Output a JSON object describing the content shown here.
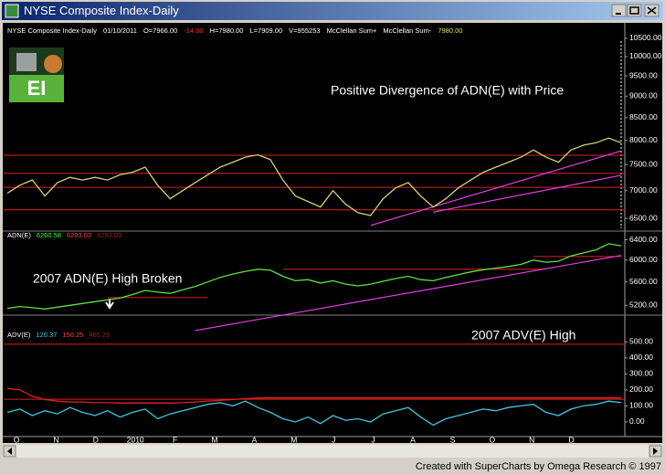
{
  "window": {
    "title": "NYSE Composite Index-Daily"
  },
  "footer": "Created with SuperCharts by Omega Research © 1997",
  "logo": "EI",
  "header": [
    {
      "text": "NYSE Composite Index-Daily",
      "color": "#ffffff"
    },
    {
      "text": "01/10/2011",
      "color": "#ffffff"
    },
    {
      "text": "O=7966.00",
      "color": "#ffffff"
    },
    {
      "text": "-14.00",
      "color": "#ff3030"
    },
    {
      "text": "H=7980.00",
      "color": "#ffffff"
    },
    {
      "text": "L=7909.00",
      "color": "#ffffff"
    },
    {
      "text": "V=955253",
      "color": "#ffffff"
    },
    {
      "text": "McClellan Sum+",
      "color": "#ffffff"
    },
    {
      "text": "McClellan Sum-",
      "color": "#ffffff"
    },
    {
      "text": "7980.00",
      "color": "#e0e060"
    }
  ],
  "x_labels": [
    "O",
    "N",
    "D",
    "2010",
    "F",
    "M",
    "A",
    "M",
    "J",
    "J",
    "A",
    "S",
    "O",
    "N",
    "D"
  ],
  "chart_data": [
    {
      "type": "line",
      "log_scale": true,
      "annotation": "Positive Divergence of ADN(E) with Price",
      "ylim": [
        6300,
        10600
      ],
      "yticks": [
        {
          "value": 10500,
          "label": "10500.00"
        },
        {
          "value": 10000,
          "label": "10000.00"
        },
        {
          "value": 9500,
          "label": "9500.00"
        },
        {
          "value": 9000,
          "label": "9000.00"
        },
        {
          "value": 8500,
          "label": "8500.00"
        },
        {
          "value": 8000,
          "label": "8000.00"
        },
        {
          "value": 7500,
          "label": "7500.00"
        },
        {
          "value": 7000,
          "label": "7000.00"
        },
        {
          "value": 6500,
          "label": "6500.00"
        }
      ],
      "series": [
        {
          "color": "#d8d070",
          "values": [
            6950,
            7100,
            7200,
            6900,
            7150,
            7250,
            7200,
            7250,
            7200,
            7300,
            7350,
            7450,
            7100,
            6850,
            7000,
            7150,
            7300,
            7450,
            7550,
            7650,
            7700,
            7600,
            7200,
            6900,
            6800,
            6700,
            7000,
            6750,
            6600,
            6550,
            6850,
            7050,
            7150,
            6900,
            6700,
            6850,
            7050,
            7200,
            7350,
            7450,
            7550,
            7650,
            7800,
            7650,
            7550,
            7800,
            7900,
            7950,
            8050,
            7950
          ]
        }
      ],
      "reference_lines": [
        {
          "value": 7690,
          "color": "#e02020"
        },
        {
          "value": 7330,
          "color": "#e02020"
        },
        {
          "value": 7060,
          "color": "#e02020"
        },
        {
          "value": 6650,
          "color": "#e02020"
        }
      ],
      "trendlines": [
        {
          "x": [
            29,
            49
          ],
          "values": [
            6380,
            7780
          ],
          "color": "#e040e0"
        },
        {
          "x": [
            34,
            49
          ],
          "values": [
            6610,
            7290
          ],
          "color": "#e040e0"
        }
      ]
    },
    {
      "type": "line",
      "log_scale": true,
      "annotation": "2007 ADN(E) High Broken",
      "legend": [
        {
          "text": "ADN(E)",
          "color": "#ffffff"
        },
        {
          "text": "6260.58",
          "color": "#40ff40"
        },
        {
          "text": "6293.03",
          "color": "#ff4040"
        },
        {
          "text": "6293.03",
          "color": "#a02020"
        }
      ],
      "ylim": [
        5070,
        6560
      ],
      "yticks": [
        {
          "value": 6400,
          "label": "6400.00"
        },
        {
          "value": 6000,
          "label": "6000.00"
        },
        {
          "value": 5600,
          "label": "5600.00"
        },
        {
          "value": 5200,
          "label": "5200.00"
        }
      ],
      "series": [
        {
          "color": "#60e040",
          "values": [
            5150,
            5180,
            5160,
            5140,
            5170,
            5200,
            5230,
            5260,
            5290,
            5320,
            5380,
            5450,
            5420,
            5400,
            5460,
            5520,
            5600,
            5680,
            5740,
            5790,
            5830,
            5810,
            5700,
            5620,
            5640,
            5580,
            5620,
            5560,
            5530,
            5560,
            5610,
            5660,
            5700,
            5640,
            5620,
            5680,
            5730,
            5780,
            5820,
            5850,
            5880,
            5920,
            6000,
            5960,
            5980,
            6080,
            6140,
            6200,
            6320,
            6280
          ]
        }
      ],
      "reference_lines": [
        {
          "value": 5830,
          "x": [
            22,
            43
          ],
          "color": "#e02020"
        },
        {
          "value": 5330,
          "x": [
            8,
            16
          ],
          "color": "#e02020"
        },
        {
          "value": 6070,
          "x": [
            42,
            49
          ],
          "color": "#e02020"
        }
      ],
      "trendlines": [
        {
          "x": [
            15,
            49
          ],
          "values": [
            4800,
            6090
          ],
          "color": "#e040e0"
        }
      ]
    },
    {
      "type": "line",
      "log_scale": false,
      "annotation": "2007 ADV(E) High",
      "legend": [
        {
          "text": "ADV(E)",
          "color": "#ffffff"
        },
        {
          "text": "120.37",
          "color": "#40d0e0"
        },
        {
          "text": "150.25",
          "color": "#ff4040"
        },
        {
          "text": "465.25",
          "color": "#a02020"
        }
      ],
      "ylim": [
        -80,
        650
      ],
      "yticks": [
        {
          "value": 500,
          "label": "500.00"
        },
        {
          "value": 400,
          "label": "400.00"
        },
        {
          "value": 300,
          "label": "300.00"
        },
        {
          "value": 200,
          "label": "200.00"
        },
        {
          "value": 100,
          "label": "100.00"
        },
        {
          "value": 0,
          "label": "0.00"
        }
      ],
      "series": [
        {
          "color": "#40c8e0",
          "values": [
            60,
            80,
            40,
            70,
            50,
            90,
            60,
            40,
            70,
            30,
            60,
            80,
            20,
            50,
            70,
            90,
            110,
            120,
            100,
            130,
            90,
            60,
            20,
            0,
            30,
            -10,
            40,
            10,
            20,
            0,
            50,
            70,
            90,
            30,
            -20,
            20,
            40,
            60,
            80,
            70,
            90,
            100,
            110,
            60,
            40,
            80,
            100,
            110,
            130,
            120
          ]
        },
        {
          "color": "#e02020",
          "values": [
            210,
            200,
            160,
            140,
            130,
            125,
            125,
            120,
            120,
            118,
            118,
            118,
            118,
            118,
            120,
            125,
            130,
            135,
            140,
            145,
            150,
            150,
            150,
            150,
            150,
            150,
            150,
            150,
            150,
            150,
            150,
            150,
            150,
            150,
            150,
            150,
            150,
            150,
            150,
            150,
            150,
            150,
            150,
            150,
            150,
            150,
            150,
            150,
            150,
            150
          ]
        }
      ],
      "reference_lines": [
        {
          "value": 485,
          "color": "#e02020"
        },
        {
          "value": 142,
          "color": "#e02020"
        }
      ]
    }
  ]
}
